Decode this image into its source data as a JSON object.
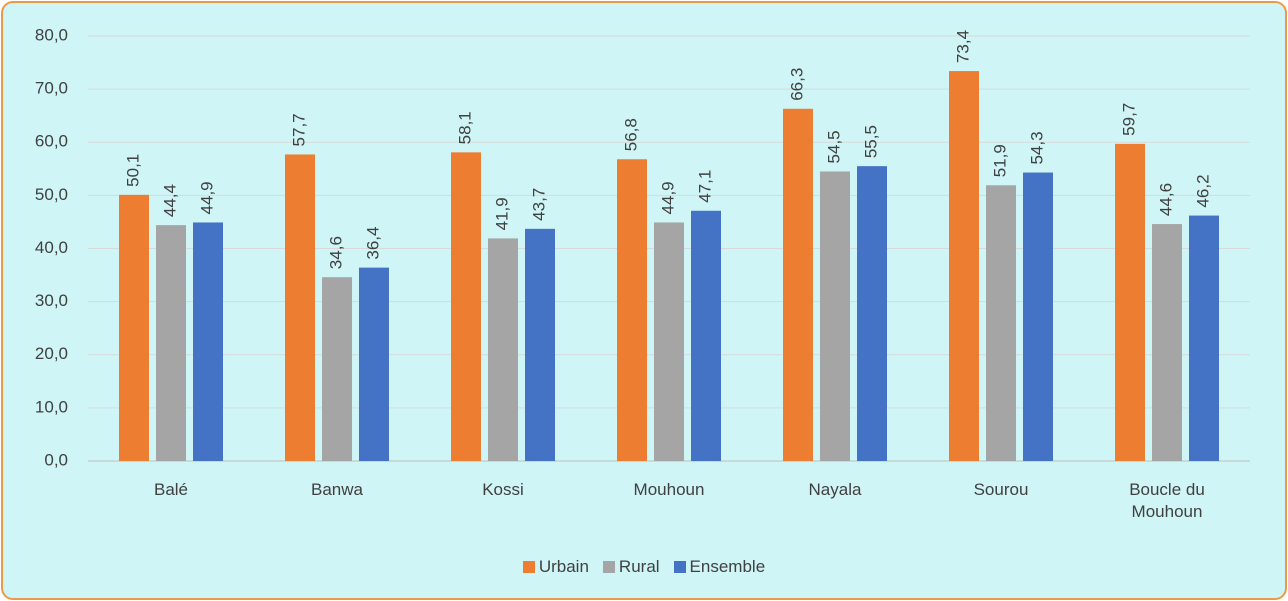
{
  "chart_data": {
    "type": "bar",
    "categories": [
      "Balé",
      "Banwa",
      "Kossi",
      "Mouhoun",
      "Nayala",
      "Sourou",
      "Boucle du Mouhoun"
    ],
    "series": [
      {
        "name": "Urbain",
        "color": "#ed7d31",
        "values": [
          50.1,
          57.7,
          58.1,
          56.8,
          66.3,
          73.4,
          59.7
        ],
        "value_labels": [
          "50,1",
          "57,7",
          "58,1",
          "56,8",
          "66,3",
          "73,4",
          "59,7"
        ]
      },
      {
        "name": "Rural",
        "color": "#a5a5a5",
        "values": [
          44.4,
          34.6,
          41.9,
          44.9,
          54.5,
          51.9,
          44.6
        ],
        "value_labels": [
          "44,4",
          "34,6",
          "41,9",
          "44,9",
          "54,5",
          "51,9",
          "44,6"
        ]
      },
      {
        "name": "Ensemble",
        "color": "#4472c4",
        "values": [
          44.9,
          36.4,
          43.7,
          47.1,
          55.5,
          54.3,
          46.2
        ],
        "value_labels": [
          "44,9",
          "36,4",
          "43,7",
          "47,1",
          "55,5",
          "54,3",
          "46,2"
        ]
      }
    ],
    "ylim": [
      0,
      80
    ],
    "yticks": [
      {
        "value": 0,
        "label": "0,0"
      },
      {
        "value": 10,
        "label": "10,0"
      },
      {
        "value": 20,
        "label": "20,0"
      },
      {
        "value": 30,
        "label": "30,0"
      },
      {
        "value": 40,
        "label": "40,0"
      },
      {
        "value": 50,
        "label": "50,0"
      },
      {
        "value": 60,
        "label": "60,0"
      },
      {
        "value": 70,
        "label": "70,0"
      },
      {
        "value": 80,
        "label": "80,0"
      }
    ],
    "grid": true,
    "legend": "bottom"
  }
}
